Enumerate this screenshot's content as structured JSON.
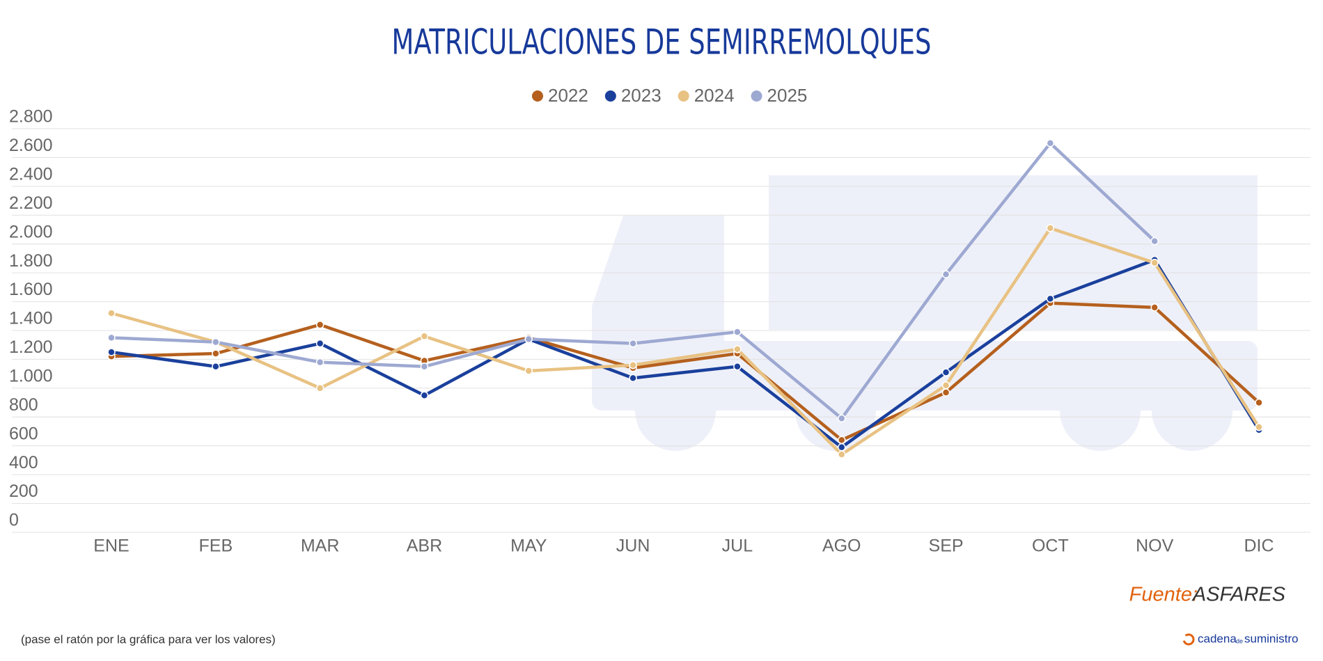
{
  "chart_data": {
    "type": "line",
    "title": "MATRICULACIONES DE SEMIRREMOLQUES",
    "categories": [
      "ENE",
      "FEB",
      "MAR",
      "ABR",
      "MAY",
      "JUN",
      "JUL",
      "AGO",
      "SEP",
      "OCT",
      "NOV",
      "DIC"
    ],
    "series": [
      {
        "name": "2022",
        "color": "#b5601e",
        "values": [
          1220,
          1240,
          1440,
          1190,
          1350,
          1140,
          1240,
          640,
          970,
          1590,
          1560,
          900
        ]
      },
      {
        "name": "2023",
        "color": "#1a409c",
        "values": [
          1250,
          1150,
          1310,
          950,
          1340,
          1070,
          1150,
          590,
          1110,
          1620,
          1890,
          710
        ]
      },
      {
        "name": "2024",
        "color": "#e8c283",
        "values": [
          1520,
          1320,
          1000,
          1360,
          1120,
          1160,
          1270,
          540,
          1020,
          2110,
          1870,
          730
        ]
      },
      {
        "name": "2025",
        "color": "#9ea9d2",
        "values": [
          1350,
          1320,
          1180,
          1150,
          1340,
          1310,
          1390,
          790,
          1790,
          2700,
          2020,
          null
        ]
      }
    ],
    "ylim": [
      0,
      2800
    ],
    "yticks": [
      0,
      200,
      400,
      600,
      800,
      {
        "value": 1000,
        "label": "1.000"
      },
      {
        "value": 1200,
        "label": "1.200"
      },
      {
        "value": 1400,
        "label": "1.400"
      },
      {
        "value": 1600,
        "label": "1.600"
      },
      {
        "value": 1800,
        "label": "1.800"
      },
      {
        "value": 2000,
        "label": "2.000"
      },
      {
        "value": 2200,
        "label": "2.200"
      },
      {
        "value": 2400,
        "label": "2.400"
      },
      {
        "value": 2600,
        "label": "2.600"
      },
      {
        "value": 2800,
        "label": "2.800"
      }
    ],
    "grid": true,
    "legend": "top",
    "source_label": "Fuente:",
    "source": "ASFARES",
    "note": "(pase el ratón por la gráfica para ver los valores)",
    "brand": [
      "cadena",
      "de",
      "suministro"
    ]
  }
}
